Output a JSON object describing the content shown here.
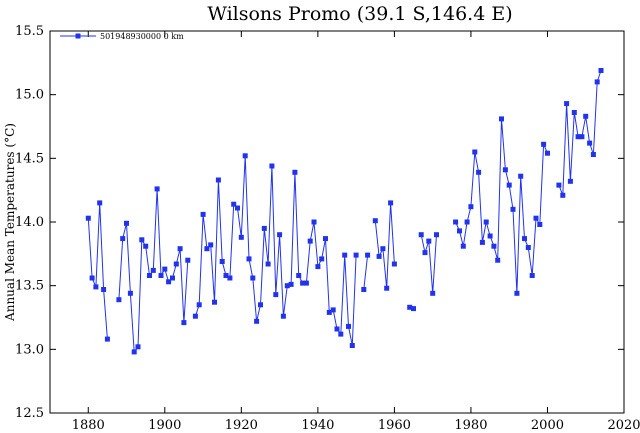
{
  "chart_data": {
    "type": "line",
    "title": "Wilsons Promo (39.1 S,146.4 E)",
    "xlabel": "",
    "ylabel": "Annual Mean Temperatures (°C)",
    "xlim": [
      1870,
      2020
    ],
    "ylim": [
      12.5,
      15.5
    ],
    "x_ticks": [
      1880,
      1900,
      1920,
      1940,
      1960,
      1980,
      2000,
      2020
    ],
    "y_ticks": [
      12.5,
      13.0,
      13.5,
      14.0,
      14.5,
      15.0,
      15.5
    ],
    "x_tick_labels": [
      "1880",
      "1900",
      "1920",
      "1940",
      "1960",
      "1980",
      "2000",
      "2020"
    ],
    "y_tick_labels": [
      "12.5",
      "13.0",
      "13.5",
      "14.0",
      "14.5",
      "15.0",
      "15.5"
    ],
    "grid": false,
    "legend_position": "top-left",
    "series": [
      {
        "name": "501948930000  0 km",
        "color": "#2233ee",
        "marker": "square",
        "segments": [
          [
            [
              1880,
              14.03
            ],
            [
              1881,
              13.56
            ],
            [
              1882,
              13.49
            ],
            [
              1883,
              14.15
            ],
            [
              1884,
              13.47
            ],
            [
              1885,
              13.08
            ]
          ],
          [
            [
              1888,
              13.39
            ],
            [
              1889,
              13.87
            ],
            [
              1890,
              13.99
            ],
            [
              1891,
              13.44
            ],
            [
              1892,
              12.98
            ],
            [
              1893,
              13.02
            ],
            [
              1894,
              13.86
            ],
            [
              1895,
              13.81
            ],
            [
              1896,
              13.58
            ],
            [
              1897,
              13.62
            ],
            [
              1898,
              14.26
            ],
            [
              1899,
              13.58
            ],
            [
              1900,
              13.63
            ],
            [
              1901,
              13.53
            ],
            [
              1902,
              13.56
            ],
            [
              1903,
              13.67
            ],
            [
              1904,
              13.79
            ],
            [
              1905,
              13.21
            ],
            [
              1906,
              13.7
            ]
          ],
          [
            [
              1908,
              13.26
            ],
            [
              1909,
              13.35
            ],
            [
              1910,
              14.06
            ],
            [
              1911,
              13.79
            ],
            [
              1912,
              13.82
            ],
            [
              1913,
              13.37
            ],
            [
              1914,
              14.33
            ],
            [
              1915,
              13.69
            ],
            [
              1916,
              13.58
            ],
            [
              1917,
              13.56
            ],
            [
              1918,
              14.14
            ],
            [
              1919,
              14.11
            ],
            [
              1920,
              13.88
            ],
            [
              1921,
              14.52
            ],
            [
              1922,
              13.71
            ],
            [
              1923,
              13.56
            ],
            [
              1924,
              13.22
            ],
            [
              1925,
              13.35
            ],
            [
              1926,
              13.95
            ],
            [
              1927,
              13.67
            ],
            [
              1928,
              14.44
            ],
            [
              1929,
              13.43
            ],
            [
              1930,
              13.9
            ],
            [
              1931,
              13.26
            ],
            [
              1932,
              13.5
            ],
            [
              1933,
              13.51
            ],
            [
              1934,
              14.39
            ],
            [
              1935,
              13.58
            ],
            [
              1936,
              13.52
            ],
            [
              1937,
              13.52
            ],
            [
              1938,
              13.85
            ],
            [
              1939,
              14.0
            ],
            [
              1940,
              13.65
            ],
            [
              1941,
              13.71
            ],
            [
              1942,
              13.87
            ],
            [
              1943,
              13.29
            ],
            [
              1944,
              13.31
            ],
            [
              1945,
              13.16
            ],
            [
              1946,
              13.12
            ],
            [
              1947,
              13.74
            ],
            [
              1948,
              13.18
            ],
            [
              1949,
              13.03
            ],
            [
              1950,
              13.74
            ]
          ],
          [
            [
              1952,
              13.47
            ],
            [
              1953,
              13.74
            ]
          ],
          [
            [
              1955,
              14.01
            ],
            [
              1956,
              13.73
            ],
            [
              1957,
              13.79
            ],
            [
              1958,
              13.48
            ],
            [
              1959,
              14.15
            ],
            [
              1960,
              13.67
            ]
          ],
          [
            [
              1964,
              13.33
            ],
            [
              1965,
              13.32
            ]
          ],
          [
            [
              1967,
              13.9
            ],
            [
              1968,
              13.76
            ],
            [
              1969,
              13.85
            ],
            [
              1970,
              13.44
            ],
            [
              1971,
              13.9
            ]
          ],
          [
            [
              1976,
              14.0
            ],
            [
              1977,
              13.93
            ],
            [
              1978,
              13.81
            ],
            [
              1979,
              14.0
            ],
            [
              1980,
              14.12
            ],
            [
              1981,
              14.55
            ],
            [
              1982,
              14.39
            ],
            [
              1983,
              13.84
            ],
            [
              1984,
              14.0
            ],
            [
              1985,
              13.89
            ],
            [
              1986,
              13.81
            ],
            [
              1987,
              13.7
            ],
            [
              1988,
              14.81
            ],
            [
              1989,
              14.41
            ],
            [
              1990,
              14.29
            ],
            [
              1991,
              14.1
            ],
            [
              1992,
              13.44
            ],
            [
              1993,
              14.36
            ],
            [
              1994,
              13.87
            ],
            [
              1995,
              13.8
            ],
            [
              1996,
              13.58
            ],
            [
              1997,
              14.03
            ],
            [
              1998,
              13.98
            ],
            [
              1999,
              14.61
            ],
            [
              2000,
              14.54
            ]
          ],
          [
            [
              2003,
              14.29
            ],
            [
              2004,
              14.21
            ],
            [
              2005,
              14.93
            ],
            [
              2006,
              14.32
            ],
            [
              2007,
              14.86
            ],
            [
              2008,
              14.67
            ],
            [
              2009,
              14.67
            ],
            [
              2010,
              14.83
            ],
            [
              2011,
              14.62
            ],
            [
              2012,
              14.53
            ],
            [
              2013,
              15.1
            ],
            [
              2014,
              15.19
            ]
          ]
        ]
      }
    ]
  }
}
